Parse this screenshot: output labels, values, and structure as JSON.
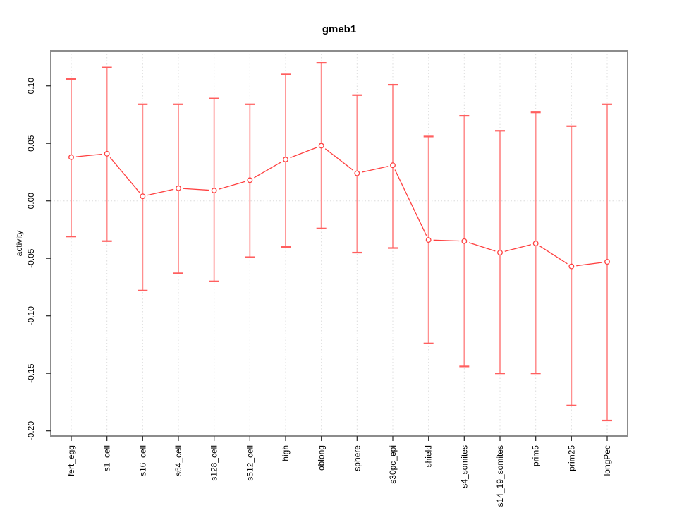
{
  "chart_data": {
    "type": "line",
    "title": "gmeb1",
    "ylabel": "activity",
    "xlabel": "",
    "legend": null,
    "grid": {
      "vertical_dotted_per_category": true,
      "horizontal_dotted_at_zero": true
    },
    "categories": [
      "fert_egg",
      "s1_cell",
      "s16_cell",
      "s64_cell",
      "s128_cell",
      "s512_cell",
      "high",
      "oblong",
      "sphere",
      "s30pc_epi",
      "shield",
      "s4_somites",
      "s14_19_somites",
      "prim5",
      "prim25",
      "longPec"
    ],
    "series": [
      {
        "name": "gmeb1",
        "values": [
          0.038,
          0.041,
          0.004,
          0.011,
          0.009,
          0.018,
          0.036,
          0.048,
          0.024,
          0.031,
          -0.034,
          -0.035,
          -0.045,
          -0.037,
          -0.057,
          -0.053
        ],
        "upper": [
          0.106,
          0.116,
          0.084,
          0.084,
          0.089,
          0.084,
          0.11,
          0.12,
          0.092,
          0.101,
          0.056,
          0.074,
          0.061,
          0.077,
          0.065,
          0.084
        ],
        "lower": [
          -0.031,
          -0.035,
          -0.078,
          -0.063,
          -0.07,
          -0.049,
          -0.04,
          -0.024,
          -0.045,
          -0.041,
          -0.124,
          -0.144,
          -0.15,
          -0.15,
          -0.178,
          -0.191
        ]
      }
    ],
    "ytick_labels": [
      "0.10",
      "0.05",
      "0.00",
      "-0.05",
      "-0.10",
      "-0.15",
      "-0.20"
    ],
    "ytick_values": [
      0.1,
      0.05,
      0.0,
      -0.05,
      -0.1,
      -0.15,
      -0.2
    ],
    "ylim": [
      -0.2045,
      0.1305
    ],
    "colors": {
      "line": "#ff4040",
      "point": "#ff4040",
      "error_bar": "#ff8f8f",
      "error_cap": "#ff5f5f",
      "grid": "#dcdcdc",
      "box": "#8c8c8c",
      "tick": "#333333",
      "text": "#000000"
    }
  }
}
